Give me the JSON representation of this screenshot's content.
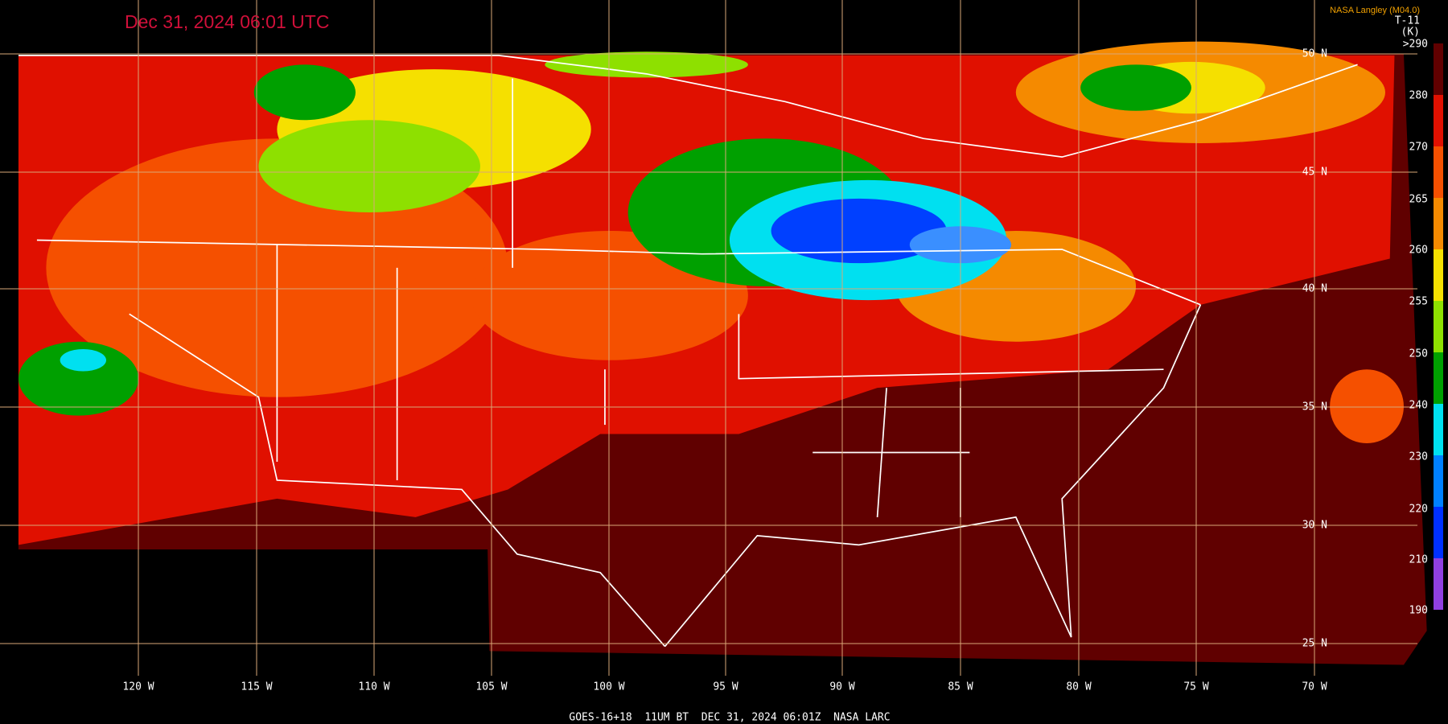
{
  "header": {
    "title": "Dec 31, 2024 06:01 UTC",
    "source": "NASA Langley (M04.0)",
    "channel": "T-11",
    "unit": "(K)"
  },
  "colorbar": {
    "labels": [
      ">290",
      "280",
      "270",
      "265",
      "260",
      "255",
      "250",
      "240",
      "230",
      "220",
      "210",
      "190"
    ]
  },
  "map": {
    "longitude_labels": [
      "120 W",
      "115 W",
      "110 W",
      "105 W",
      "100 W",
      "95 W",
      "90 W",
      "85 W",
      "80 W",
      "75 W",
      "70 W"
    ],
    "latitude_labels": [
      "50 N",
      "45 N",
      "40 N",
      "35 N",
      "30 N",
      "25 N"
    ]
  },
  "footer": "GOES-16+18  11UM BT  DEC 31, 2024 06:01Z  NASA LARC"
}
